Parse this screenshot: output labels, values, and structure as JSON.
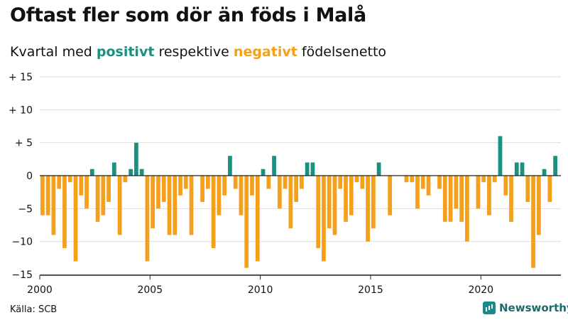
{
  "header": {
    "title": "Oftast fler som dör än föds i Malå",
    "subtitle_prefix": "Kvartal med",
    "subtitle_positive": "positivt",
    "subtitle_middle": "respektive",
    "subtitle_negative": "negativt",
    "subtitle_suffix": "födelsenetto"
  },
  "footer": {
    "source": "Källa: SCB",
    "brand": "Newsworthy"
  },
  "colors": {
    "positive": "#1a9080",
    "negative": "#f5a01a",
    "grid": "#dddddd",
    "zero": "#222222"
  },
  "chart_data": {
    "type": "bar",
    "title": "Oftast fler som dör än föds i Malå",
    "subtitle": "Kvartal med positivt respektive negativt födelsenetto",
    "xlabel": "",
    "ylabel": "",
    "ylim": [
      -15,
      15
    ],
    "y_ticks": [
      15,
      10,
      5,
      0,
      -5,
      -10,
      -15
    ],
    "y_tick_labels": [
      "+ 15",
      "+ 10",
      "+  5",
      "0",
      "−5",
      "−10",
      "−15"
    ],
    "x_ticks": [
      2000,
      2005,
      2010,
      2015,
      2020
    ],
    "x_tick_labels": [
      "2000",
      "2005",
      "2010",
      "2015",
      "2020"
    ],
    "start_year": 2000,
    "grid": true,
    "values": [
      -6,
      -6,
      -9,
      -2,
      -11,
      -1,
      -13,
      -3,
      -5,
      1,
      -7,
      -6,
      -4,
      2,
      -9,
      -1,
      1,
      5,
      1,
      -13,
      -8,
      -5,
      -4,
      -9,
      -9,
      -3,
      -2,
      -9,
      0,
      -4,
      -2,
      -11,
      -6,
      -3,
      3,
      -2,
      -6,
      -14,
      -3,
      -13,
      1,
      -2,
      3,
      -5,
      -2,
      -8,
      -4,
      -2,
      2,
      2,
      -11,
      -13,
      -8,
      -9,
      -2,
      -7,
      -6,
      -1,
      -2,
      -10,
      -8,
      2,
      0,
      -6,
      0,
      0,
      -1,
      -1,
      -5,
      -2,
      -3,
      0,
      -2,
      -7,
      -7,
      -5,
      -7,
      -10,
      0,
      -5,
      -1,
      -6,
      -1,
      6,
      -3,
      -7,
      2,
      2,
      -4,
      -14,
      -9,
      1,
      -4,
      3
    ]
  }
}
